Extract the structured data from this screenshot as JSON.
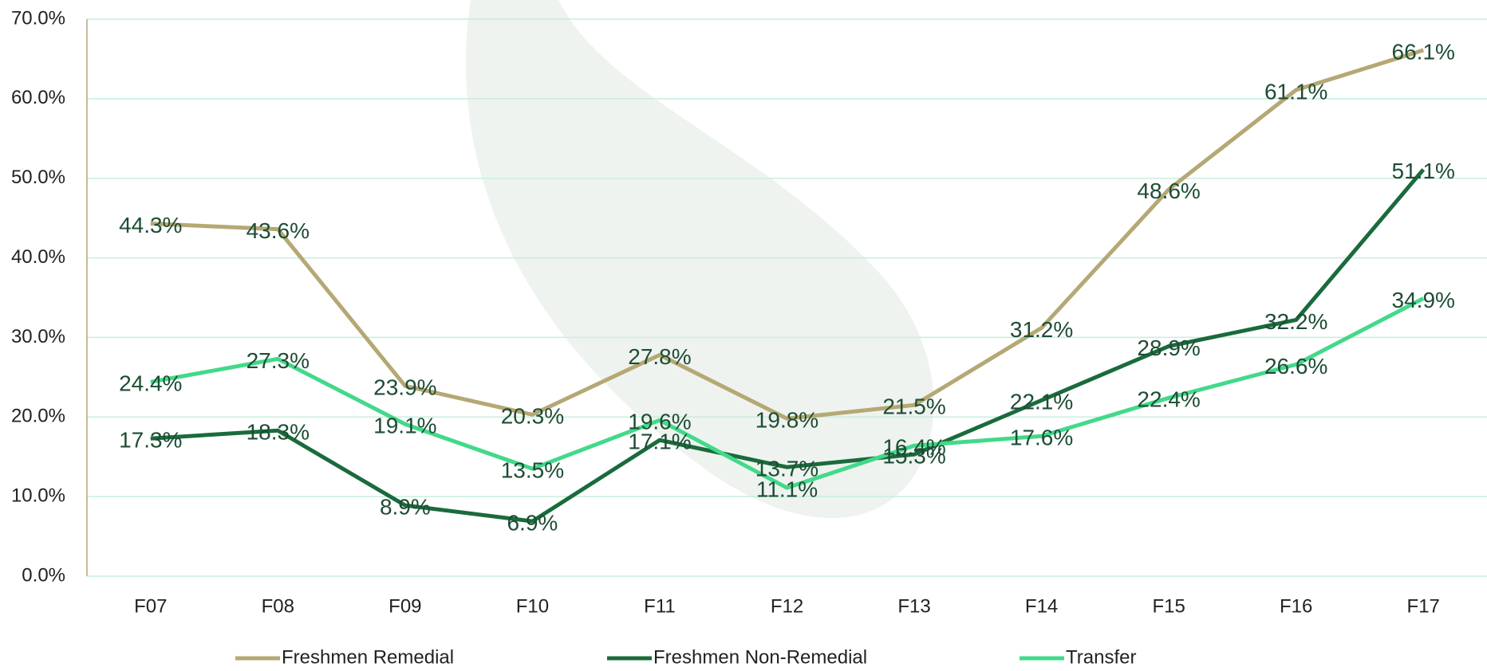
{
  "chart_data": {
    "type": "line",
    "categories": [
      "F07",
      "F08",
      "F09",
      "F10",
      "F11",
      "F12",
      "F13",
      "F14",
      "F15",
      "F16",
      "F17"
    ],
    "series": [
      {
        "name": "Freshmen Remedial",
        "color": "#b5a874",
        "values": [
          44.3,
          43.6,
          23.9,
          20.3,
          27.8,
          19.8,
          21.5,
          31.2,
          48.6,
          61.1,
          66.1
        ],
        "value_labels": [
          "44.3%",
          "43.6%",
          "23.9%",
          "20.3%",
          "27.8%",
          "19.8%",
          "21.5%",
          "31.2%",
          "48.6%",
          "61.1%",
          "66.1%"
        ]
      },
      {
        "name": "Freshmen Non-Remedial",
        "color": "#1a6b3c",
        "values": [
          17.3,
          18.3,
          8.9,
          6.9,
          17.1,
          13.7,
          15.3,
          22.1,
          28.9,
          32.2,
          51.1
        ],
        "value_labels": [
          "17.3%",
          "18.3%",
          "8.9%",
          "6.9%",
          "17.1%",
          "13.7%",
          "15.3%",
          "22.1%",
          "28.9%",
          "32.2%",
          "51.1%"
        ]
      },
      {
        "name": "Transfer",
        "color": "#42d98a",
        "values": [
          24.4,
          27.3,
          19.1,
          13.5,
          19.6,
          11.1,
          16.4,
          17.6,
          22.4,
          26.6,
          34.9
        ],
        "value_labels": [
          "24.4%",
          "27.3%",
          "19.1%",
          "13.5%",
          "19.6%",
          "11.1%",
          "16.4%",
          "17.6%",
          "22.4%",
          "26.6%",
          "34.9%"
        ]
      }
    ],
    "ylim": [
      0,
      70
    ],
    "yticks": [
      {
        "value": 0,
        "label": "0.0%"
      },
      {
        "value": 10,
        "label": "10.0%"
      },
      {
        "value": 20,
        "label": "20.0%"
      },
      {
        "value": 30,
        "label": "30.0%"
      },
      {
        "value": 40,
        "label": "40.0%"
      },
      {
        "value": 50,
        "label": "50.0%"
      },
      {
        "value": 60,
        "label": "60.0%"
      },
      {
        "value": 70,
        "label": "70.0%"
      }
    ],
    "grid": true,
    "legend": "bottom"
  }
}
